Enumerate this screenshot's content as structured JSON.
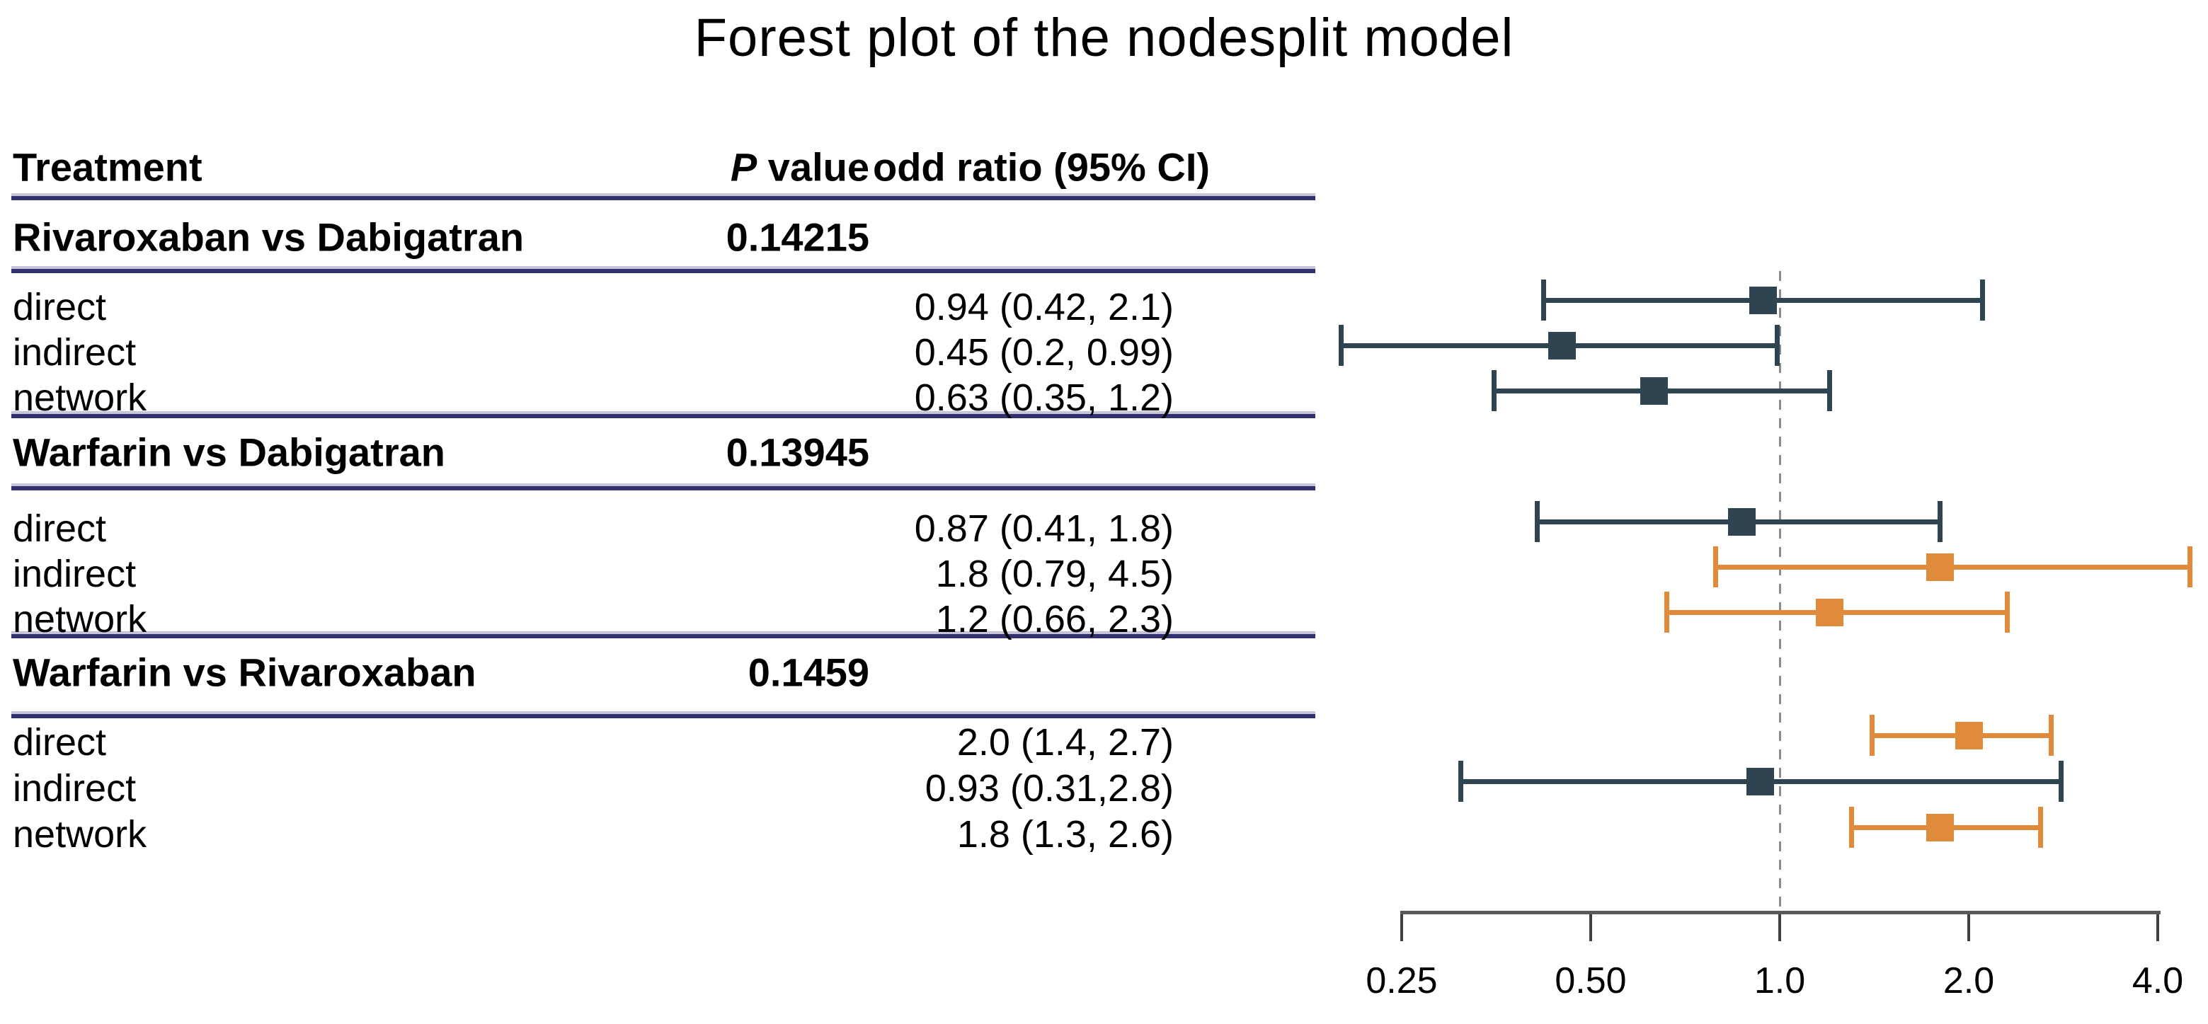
{
  "title": "Forest plot of the nodesplit model",
  "table": {
    "col_headers": {
      "treatment": "Treatment",
      "p_value_italic": "P",
      "p_value_rest": " value",
      "odd_ratio": "odd ratio (95% CI)"
    },
    "groups": [
      {
        "treatment": "Rivaroxaban vs Dabigatran",
        "p_value": "0.14215",
        "rows": [
          {
            "label": "direct",
            "or_ci": "0.94 (0.42, 2.1)"
          },
          {
            "label": "indirect",
            "or_ci": "0.45 (0.2, 0.99)"
          },
          {
            "label": "network",
            "or_ci": "0.63 (0.35, 1.2)"
          }
        ]
      },
      {
        "treatment": "Warfarin vs Dabigatran",
        "p_value": "0.13945",
        "rows": [
          {
            "label": "direct",
            "or_ci": "0.87 (0.41, 1.8)"
          },
          {
            "label": "indirect",
            "or_ci": "1.8 (0.79, 4.5)"
          },
          {
            "label": "network",
            "or_ci": "1.2 (0.66, 2.3)"
          }
        ]
      },
      {
        "treatment": "Warfarin vs Rivaroxaban",
        "p_value": "0.1459",
        "rows": [
          {
            "label": "direct",
            "or_ci": "2.0 (1.4, 2.7)"
          },
          {
            "label": "indirect",
            "or_ci": "0.93 (0.31,2.8)"
          },
          {
            "label": "network",
            "or_ci": "1.8 (1.3, 2.6)"
          }
        ]
      }
    ]
  },
  "chart_data": {
    "type": "forest",
    "title": "Forest plot of the nodesplit model",
    "x_scale": "log2",
    "x_range": [
      0.25,
      4.5
    ],
    "x_ticks": [
      0.25,
      0.5,
      1.0,
      2.0,
      4.0
    ],
    "x_tick_labels": [
      "0.25",
      "0.50",
      "1.0",
      "2.0",
      "4.0"
    ],
    "reference_line": 1.0,
    "grid": false,
    "legend": false,
    "series": [
      {
        "group": "Rivaroxaban vs Dabigatran",
        "comparison": "direct",
        "estimate": 0.94,
        "ci_lower": 0.42,
        "ci_upper": 2.1,
        "color": "#2E4450"
      },
      {
        "group": "Rivaroxaban vs Dabigatran",
        "comparison": "indirect",
        "estimate": 0.45,
        "ci_lower": 0.2,
        "ci_upper": 0.99,
        "color": "#2E4450"
      },
      {
        "group": "Rivaroxaban vs Dabigatran",
        "comparison": "network",
        "estimate": 0.63,
        "ci_lower": 0.35,
        "ci_upper": 1.2,
        "color": "#2E4450"
      },
      {
        "group": "Warfarin vs Dabigatran",
        "comparison": "direct",
        "estimate": 0.87,
        "ci_lower": 0.41,
        "ci_upper": 1.8,
        "color": "#2E4450"
      },
      {
        "group": "Warfarin vs Dabigatran",
        "comparison": "indirect",
        "estimate": 1.8,
        "ci_lower": 0.79,
        "ci_upper": 4.5,
        "color": "#E08B3C"
      },
      {
        "group": "Warfarin vs Dabigatran",
        "comparison": "network",
        "estimate": 1.2,
        "ci_lower": 0.66,
        "ci_upper": 2.3,
        "color": "#E08B3C"
      },
      {
        "group": "Warfarin vs Rivaroxaban",
        "comparison": "direct",
        "estimate": 2.0,
        "ci_lower": 1.4,
        "ci_upper": 2.7,
        "color": "#E08B3C"
      },
      {
        "group": "Warfarin vs Rivaroxaban",
        "comparison": "indirect",
        "estimate": 0.93,
        "ci_lower": 0.31,
        "ci_upper": 2.8,
        "color": "#2E4450"
      },
      {
        "group": "Warfarin vs Rivaroxaban",
        "comparison": "network",
        "estimate": 1.8,
        "ci_lower": 1.3,
        "ci_upper": 2.6,
        "color": "#E08B3C"
      }
    ],
    "colors": {
      "estimate_below_1": "#2E4450",
      "estimate_above_1": "#E08B3C",
      "separator_dark": "#31316F",
      "separator_light": "#C6C6D8",
      "axis": "#5A5A5A",
      "reference_dashed": "#8C8C8C"
    }
  }
}
